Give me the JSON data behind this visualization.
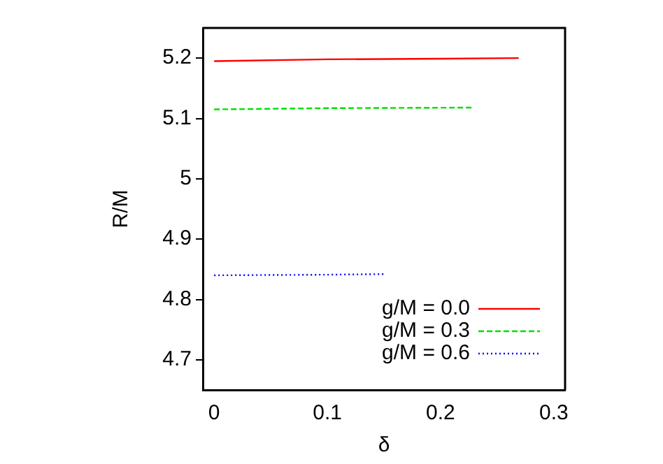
{
  "chart_data": {
    "type": "line",
    "xlabel": "δ",
    "ylabel": "R/M",
    "xlim": [
      -0.01,
      0.31
    ],
    "ylim": [
      4.65,
      5.25
    ],
    "xticks": [
      {
        "value": 0,
        "label": "0"
      },
      0.1,
      0.2,
      0.3
    ],
    "yticks": [
      4.7,
      4.8,
      4.9,
      {
        "value": 5,
        "label": "5"
      },
      5.1,
      5.2
    ],
    "grid": false,
    "legend": "bottom right",
    "marker": "none",
    "series": [
      {
        "name": "g/M = 0.0",
        "color": "#ff0000",
        "line_style": "solid",
        "x": [
          0,
          0.1,
          0.2,
          0.269
        ],
        "values": [
          5.195,
          5.198,
          5.199,
          5.2
        ]
      },
      {
        "name": "g/M = 0.3",
        "color": "#00e000",
        "line_style": "dashed",
        "x": [
          0,
          0.1,
          0.228
        ],
        "values": [
          5.115,
          5.117,
          5.118
        ]
      },
      {
        "name": "g/M = 0.6",
        "color": "#0000ff",
        "line_style": "dotted",
        "x": [
          0,
          0.1,
          0.15
        ],
        "values": [
          4.84,
          4.841,
          4.842
        ]
      }
    ]
  }
}
